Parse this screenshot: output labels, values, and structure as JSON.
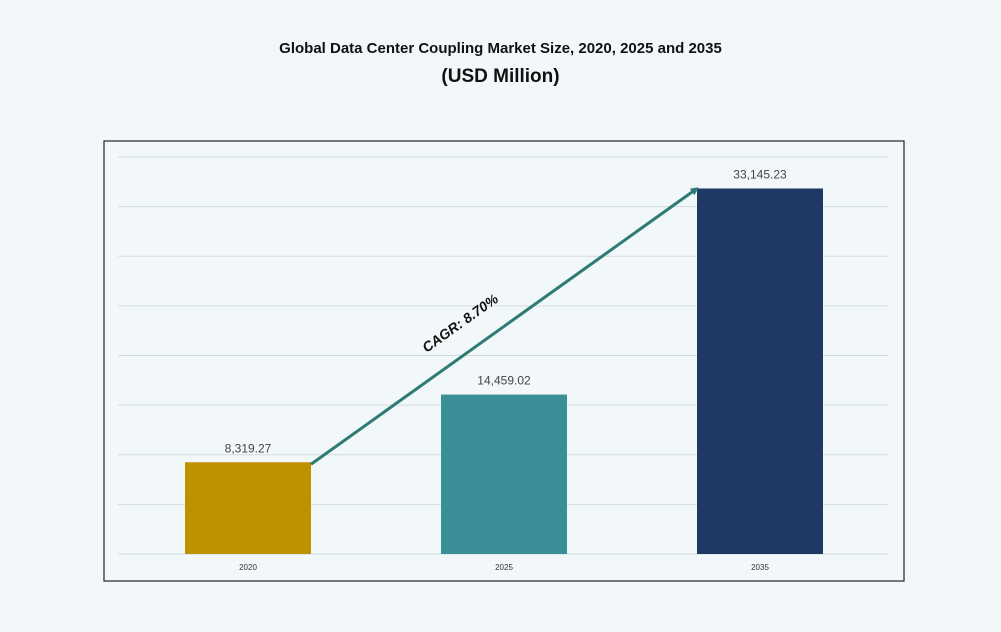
{
  "chart_data": {
    "type": "bar",
    "title": "Global Data Center Coupling Market Size, 2020, 2025 and 2035",
    "subtitle": "(USD Million)",
    "categories": [
      "2020",
      "2025",
      "2035"
    ],
    "values": [
      8319.27,
      14459.02,
      33145.23
    ],
    "data_labels": [
      "8,319.27",
      "14,459.02",
      "33,145.23"
    ],
    "colors": [
      "#bf9000",
      "#3a8f98",
      "#1f3864"
    ],
    "ylim": [
      0,
      36000
    ],
    "grid": true,
    "y_axis_labels_shown": false,
    "annotation": {
      "text": "CAGR: 8.70%",
      "arrow_from": "2020",
      "arrow_to": "2035",
      "color": "#2e7a74"
    }
  }
}
